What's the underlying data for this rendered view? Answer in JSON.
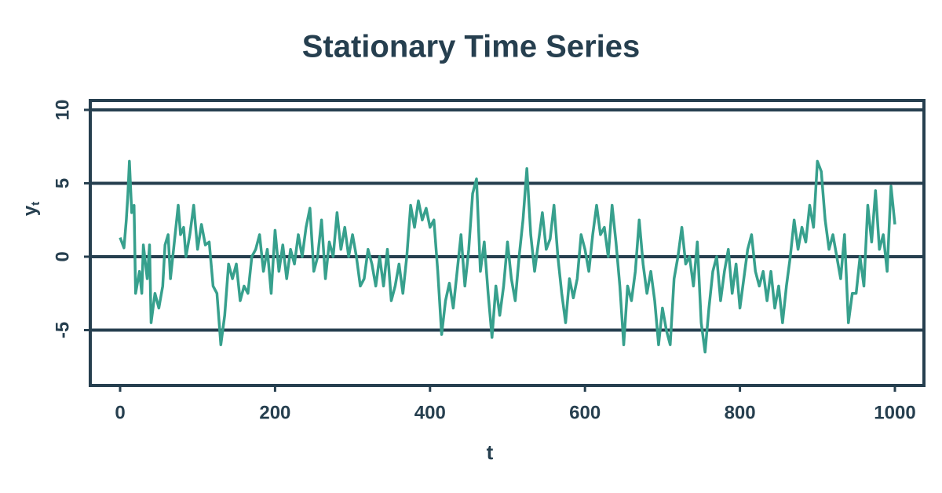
{
  "chart_data": {
    "type": "line",
    "title": "Stationary Time Series",
    "xlabel": "t",
    "ylabel": "y",
    "ylabel_subscript": "t",
    "color": "#37a08d",
    "grid": "y",
    "xlim": [
      -38.5,
      1037.5
    ],
    "xticks": [
      0,
      200,
      400,
      600,
      800,
      1000
    ],
    "ylim": [
      -8.77,
      10.64
    ],
    "yticks": [
      -5,
      0,
      5,
      10
    ],
    "x": [
      0,
      5,
      8,
      10,
      12,
      15,
      18,
      20,
      25,
      28,
      30,
      35,
      38,
      40,
      45,
      50,
      55,
      58,
      62,
      65,
      70,
      75,
      78,
      82,
      85,
      90,
      95,
      100,
      105,
      110,
      115,
      120,
      125,
      130,
      135,
      140,
      145,
      150,
      155,
      160,
      165,
      170,
      175,
      180,
      185,
      190,
      195,
      200,
      205,
      210,
      215,
      220,
      225,
      230,
      235,
      240,
      245,
      250,
      255,
      260,
      265,
      270,
      275,
      280,
      285,
      290,
      295,
      300,
      305,
      310,
      315,
      320,
      325,
      330,
      335,
      340,
      345,
      350,
      355,
      360,
      365,
      370,
      375,
      380,
      385,
      390,
      395,
      400,
      405,
      410,
      415,
      420,
      425,
      430,
      435,
      440,
      445,
      450,
      455,
      460,
      465,
      470,
      475,
      480,
      485,
      490,
      495,
      500,
      505,
      510,
      515,
      520,
      525,
      530,
      535,
      540,
      545,
      550,
      555,
      560,
      565,
      570,
      575,
      580,
      585,
      590,
      595,
      600,
      605,
      610,
      615,
      620,
      625,
      630,
      635,
      640,
      645,
      650,
      655,
      660,
      665,
      670,
      675,
      680,
      685,
      690,
      695,
      700,
      705,
      710,
      715,
      720,
      725,
      730,
      735,
      740,
      745,
      750,
      755,
      760,
      765,
      770,
      775,
      780,
      785,
      790,
      795,
      800,
      805,
      810,
      815,
      820,
      825,
      830,
      835,
      840,
      845,
      850,
      855,
      860,
      865,
      870,
      875,
      880,
      885,
      890,
      895,
      900,
      905,
      910,
      915,
      920,
      925,
      930,
      935,
      940,
      945,
      950,
      955,
      960,
      965,
      970,
      975,
      980,
      985,
      990,
      995,
      1000
    ],
    "values": [
      1.3,
      0.6,
      2.5,
      4.2,
      6.5,
      3,
      3.5,
      -2.5,
      -1,
      -2.5,
      0.8,
      -1.5,
      0.8,
      -4.5,
      -2.5,
      -3.5,
      -2,
      0.8,
      1.5,
      -1.5,
      1,
      3.5,
      1.5,
      2,
      0,
      1.5,
      3.5,
      0.5,
      2.2,
      0.8,
      1,
      -2,
      -2.5,
      -6,
      -4,
      -0.5,
      -1.5,
      -0.5,
      -3,
      -2,
      -2.5,
      0,
      0.5,
      1.5,
      -1,
      0.5,
      -2.5,
      1.8,
      -1,
      0.8,
      -1.5,
      0.5,
      -0.5,
      1.5,
      0,
      2,
      3.3,
      -1,
      0,
      2.5,
      -1.5,
      1,
      0,
      3,
      0.5,
      2,
      0,
      1.5,
      0,
      -2,
      -1.5,
      0.5,
      -0.5,
      -2,
      0,
      -2,
      0.5,
      -3,
      -2,
      -0.5,
      -2.5,
      0,
      3.5,
      2,
      3.8,
      2.5,
      3.3,
      2,
      2.5,
      -1,
      -5.3,
      -3,
      -1.8,
      -3.5,
      -1,
      1.5,
      -2,
      0.5,
      4.3,
      5.3,
      -1,
      1,
      -2.5,
      -5.5,
      -2,
      -4,
      -2,
      1,
      -1.5,
      -3,
      0,
      2.5,
      6,
      1.5,
      -1,
      1,
      3,
      0.5,
      1.2,
      3.5,
      0,
      -2.5,
      -4.5,
      -1.5,
      -2.8,
      -1.5,
      1.5,
      0.5,
      -1,
      1.5,
      3.5,
      1.5,
      2,
      0,
      3.5,
      1,
      -2,
      -6,
      -2,
      -3,
      -1,
      2.5,
      -0.5,
      -2.5,
      -1,
      -3,
      -6,
      -3.5,
      -5,
      -6,
      -1.5,
      0,
      2,
      -0.5,
      0,
      -2,
      1,
      -4.5,
      -6.5,
      -3.5,
      -1,
      0,
      -3,
      -1,
      0.5,
      -2.5,
      -0.5,
      -3.5,
      -1.5,
      0.5,
      1.5,
      -1,
      -2,
      -1,
      -3,
      -1,
      -3.5,
      -2,
      -4.5,
      -2,
      0,
      2.5,
      0.5,
      2,
      1,
      3.5,
      2,
      6.5,
      5.8,
      2.5,
      0.5,
      1.5,
      0,
      -1.5,
      1.5,
      -4.5,
      -2.5,
      -2.5,
      0,
      -2,
      3.5,
      1,
      4.5,
      0.5,
      1.5,
      -1,
      4.8,
      2.2
    ]
  }
}
